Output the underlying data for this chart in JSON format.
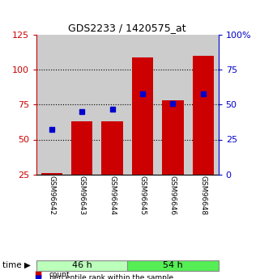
{
  "title": "GDS2233 / 1420575_at",
  "categories": [
    "GSM96642",
    "GSM96643",
    "GSM96644",
    "GSM96645",
    "GSM96646",
    "GSM96648"
  ],
  "bar_values": [
    26,
    63,
    63,
    109,
    78,
    110
  ],
  "percentile_values": [
    32,
    45,
    47,
    58,
    51,
    58
  ],
  "bar_color": "#cc0000",
  "percentile_color": "#0000cc",
  "group1_label": "46 h",
  "group2_label": "54 h",
  "group1_bg": "#bbffbb",
  "group2_bg": "#55ee55",
  "bar_bg": "#cccccc",
  "ylim_left": [
    25,
    125
  ],
  "ylim_right": [
    0,
    100
  ],
  "yticks_left": [
    25,
    50,
    75,
    100,
    125
  ],
  "yticks_right": [
    0,
    25,
    50,
    75,
    100
  ],
  "left_axis_color": "#cc0000",
  "right_axis_color": "#0000cc",
  "legend_count_label": "count",
  "legend_pct_label": "percentile rank within the sample",
  "bar_bottom": 25,
  "bar_width": 0.7
}
